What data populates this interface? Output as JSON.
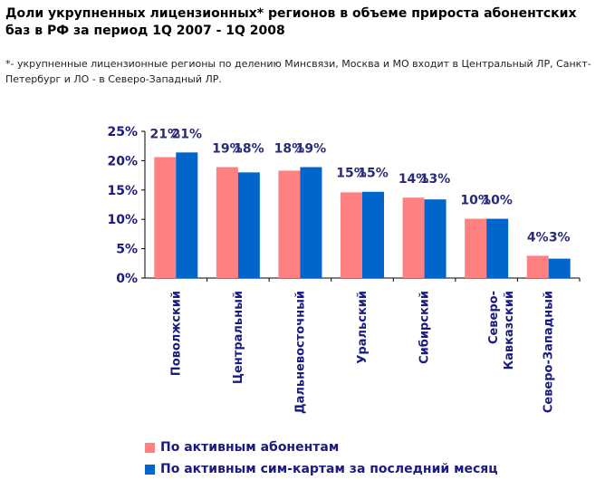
{
  "page": {
    "title": "Доли укрупненных лицензионных* регионов в объеме прироста абонентских баз в РФ за период 1Q 2007 - 1Q 2008",
    "note": "*- укрупненные лицензионные регионы по делению Минсвязи, Москва и МО входит в Центральный ЛР, Санкт-Петербург и ЛО - в Северо-Западный ЛР."
  },
  "chart_data": {
    "type": "bar",
    "title": "Доли укрупненных лицензионных* регионов в объеме прироста абонентских баз в РФ за период 1Q 2007 - 1Q 2008",
    "xlabel": "",
    "ylabel": "",
    "ylim": [
      0,
      25
    ],
    "yticks": [
      "0%",
      "5%",
      "10%",
      "15%",
      "20%",
      "25%"
    ],
    "categories": [
      "Поволжский",
      "Центральный",
      "Дальневосточный",
      "Уральский",
      "Сибирский",
      "Северо-Кавказский",
      "Северо-Западный"
    ],
    "category_lines": [
      [
        "Поволжский"
      ],
      [
        "Центральный"
      ],
      [
        "Дальневосточный"
      ],
      [
        "Уральский"
      ],
      [
        "Сибирский"
      ],
      [
        "Северо-",
        "Кавказский"
      ],
      [
        "Северо-Западный"
      ]
    ],
    "series": [
      {
        "name": "По активным абонентам",
        "color": "#ff8080",
        "values": [
          20.6,
          18.9,
          18.3,
          14.6,
          13.7,
          10.1,
          3.8
        ],
        "labels": [
          "21%",
          "19%",
          "18%",
          "15%",
          "14%",
          "10%",
          "4%"
        ]
      },
      {
        "name": "По активным сим-картам за последний месяц",
        "color": "#0066cc",
        "values": [
          21.4,
          18.0,
          18.9,
          14.7,
          13.4,
          10.1,
          3.3
        ],
        "labels": [
          "21%",
          "18%",
          "19%",
          "15%",
          "13%",
          "10%",
          "3%"
        ]
      }
    ],
    "grid": false,
    "legend": "bottom"
  }
}
